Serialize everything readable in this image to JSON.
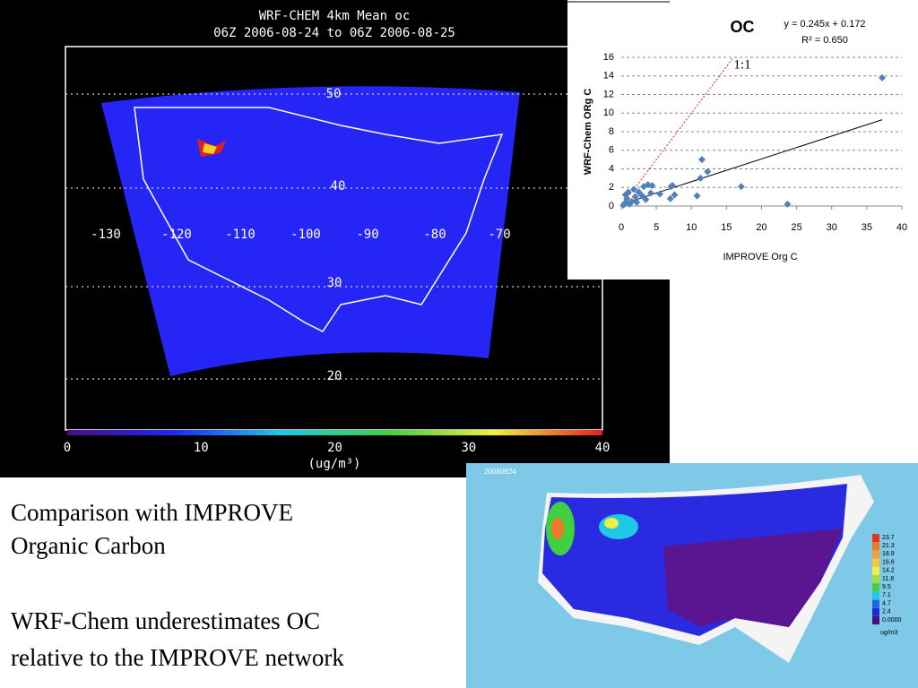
{
  "left_map": {
    "title_lines": [
      "WRF-CHEM 4km Mean oc",
      "06Z 2006-08-24 to 06Z 2006-08-25"
    ],
    "lat_labels": [
      "50",
      "40",
      "30",
      "20"
    ],
    "lon_labels": [
      "-130",
      "-120",
      "-110",
      "-100",
      "-90",
      "-80",
      "-70"
    ],
    "colorbar_ticks": [
      0,
      10,
      20,
      30,
      40
    ],
    "unit": "(ug/m³)"
  },
  "chart_data": {
    "type": "scatter",
    "title": "OC",
    "trendline": {
      "slope": 0.245,
      "intercept": 0.172,
      "label": "y = 0.245x + 0.172"
    },
    "r_squared_label": "R² = 0.650",
    "reference_line": {
      "slope": 1,
      "label": "1:1"
    },
    "xlabel": "IMPROVE Org C",
    "ylabel": "WRF-Chem ORg C",
    "xlim": [
      0,
      40
    ],
    "ylim": [
      0,
      16
    ],
    "xticks": [
      0,
      5,
      10,
      15,
      20,
      25,
      30,
      35,
      40
    ],
    "yticks": [
      0,
      2,
      4,
      6,
      8,
      10,
      12,
      14,
      16
    ],
    "grid": true,
    "series": [
      {
        "color": "#4f81bd",
        "x": [
          37.2,
          23.7,
          17.1,
          12.3,
          11.5,
          11.3,
          10.8,
          7.6,
          7.3,
          7.0,
          7.1,
          5.5,
          4.4,
          3.8,
          3.2,
          3.0,
          2.5,
          2.0,
          1.5,
          1.0,
          0.8,
          0.5,
          0.3,
          1.2,
          2.2,
          3.5,
          4.2,
          0.6,
          1.8
        ],
        "values": [
          13.8,
          0.2,
          2.1,
          3.7,
          5.0,
          3.0,
          1.1,
          1.2,
          2.2,
          0.8,
          2.1,
          1.3,
          2.2,
          2.3,
          2.1,
          1.1,
          1.5,
          1.0,
          0.5,
          1.5,
          0.8,
          0.3,
          0.1,
          0.2,
          0.4,
          0.7,
          1.4,
          1.2,
          1.8
        ]
      }
    ]
  },
  "right_map": {
    "date": "20060824",
    "legend": [
      "23.7",
      "21.3",
      "18.9",
      "16.6",
      "14.2",
      "11.8",
      "9.5",
      "7.1",
      "4.7",
      "2.4",
      "0.0000"
    ],
    "legend_colors": [
      "#e8321e",
      "#f07828",
      "#f5a032",
      "#f8c83c",
      "#f0f040",
      "#a0e040",
      "#40d040",
      "#20c8e8",
      "#1e64f0",
      "#1e28d2",
      "#4b0f82"
    ],
    "unit": "ug/m3"
  },
  "text": {
    "heading_lines": [
      "Comparison with IMPROVE",
      "Organic Carbon"
    ],
    "body_lines": [
      "WRF-Chem underestimates OC",
      "relative to the IMPROVE network"
    ]
  }
}
